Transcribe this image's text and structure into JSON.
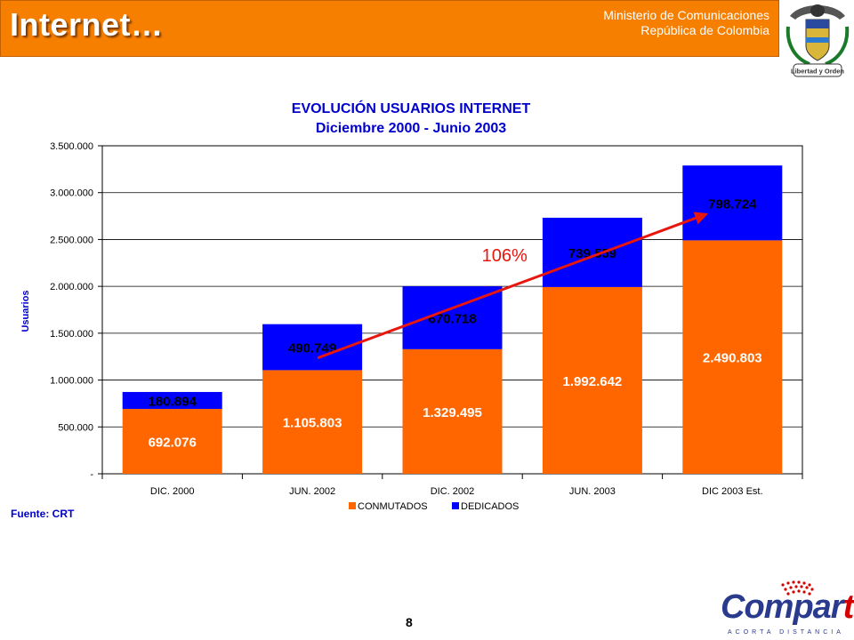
{
  "header": {
    "title": "Internet…",
    "ministry_line1": "Ministerio de Comunicaciones",
    "ministry_line2": "República de Colombia",
    "crest_motto": "Libertad y Orden"
  },
  "chart_data": {
    "type": "bar",
    "stacked": true,
    "title": "EVOLUCIÓN USUARIOS INTERNET",
    "subtitle": "Diciembre 2000 - Junio 2003",
    "xlabel": "",
    "ylabel": "Usuarios",
    "ylim": [
      0,
      3500000
    ],
    "yticks": [
      0,
      500000,
      1000000,
      1500000,
      2000000,
      2500000,
      3000000,
      3500000
    ],
    "ytick_labels": [
      "-",
      "500.000",
      "1.000.000",
      "1.500.000",
      "2.000.000",
      "2.500.000",
      "3.000.000",
      "3.500.000"
    ],
    "categories": [
      "DIC. 2000",
      "JUN. 2002",
      "DIC. 2002",
      "JUN. 2003",
      "DIC 2003 Est."
    ],
    "series": [
      {
        "name": "CONMUTADOS",
        "color": "#FF6600",
        "values": [
          692076,
          1105803,
          1329495,
          1992642,
          2490803
        ],
        "labels": [
          "692.076",
          "1.105.803",
          "1.329.495",
          "1.992.642",
          "2.490.803"
        ]
      },
      {
        "name": "DEDICADOS",
        "color": "#0000FF",
        "values": [
          180894,
          490749,
          670718,
          739559,
          798724
        ],
        "labels": [
          "180.894",
          "490.749",
          "670.718",
          "739.559",
          "798.724"
        ]
      }
    ],
    "grid": true,
    "legend_position": "bottom",
    "annotation": {
      "text": "106%",
      "color": "#E8160C"
    },
    "source": "Fuente: CRT"
  },
  "footer": {
    "page_number": "8",
    "brand_main": "Compar",
    "brand_accent": "tel",
    "brand_tagline": "ACORTA DISTANCIA"
  }
}
